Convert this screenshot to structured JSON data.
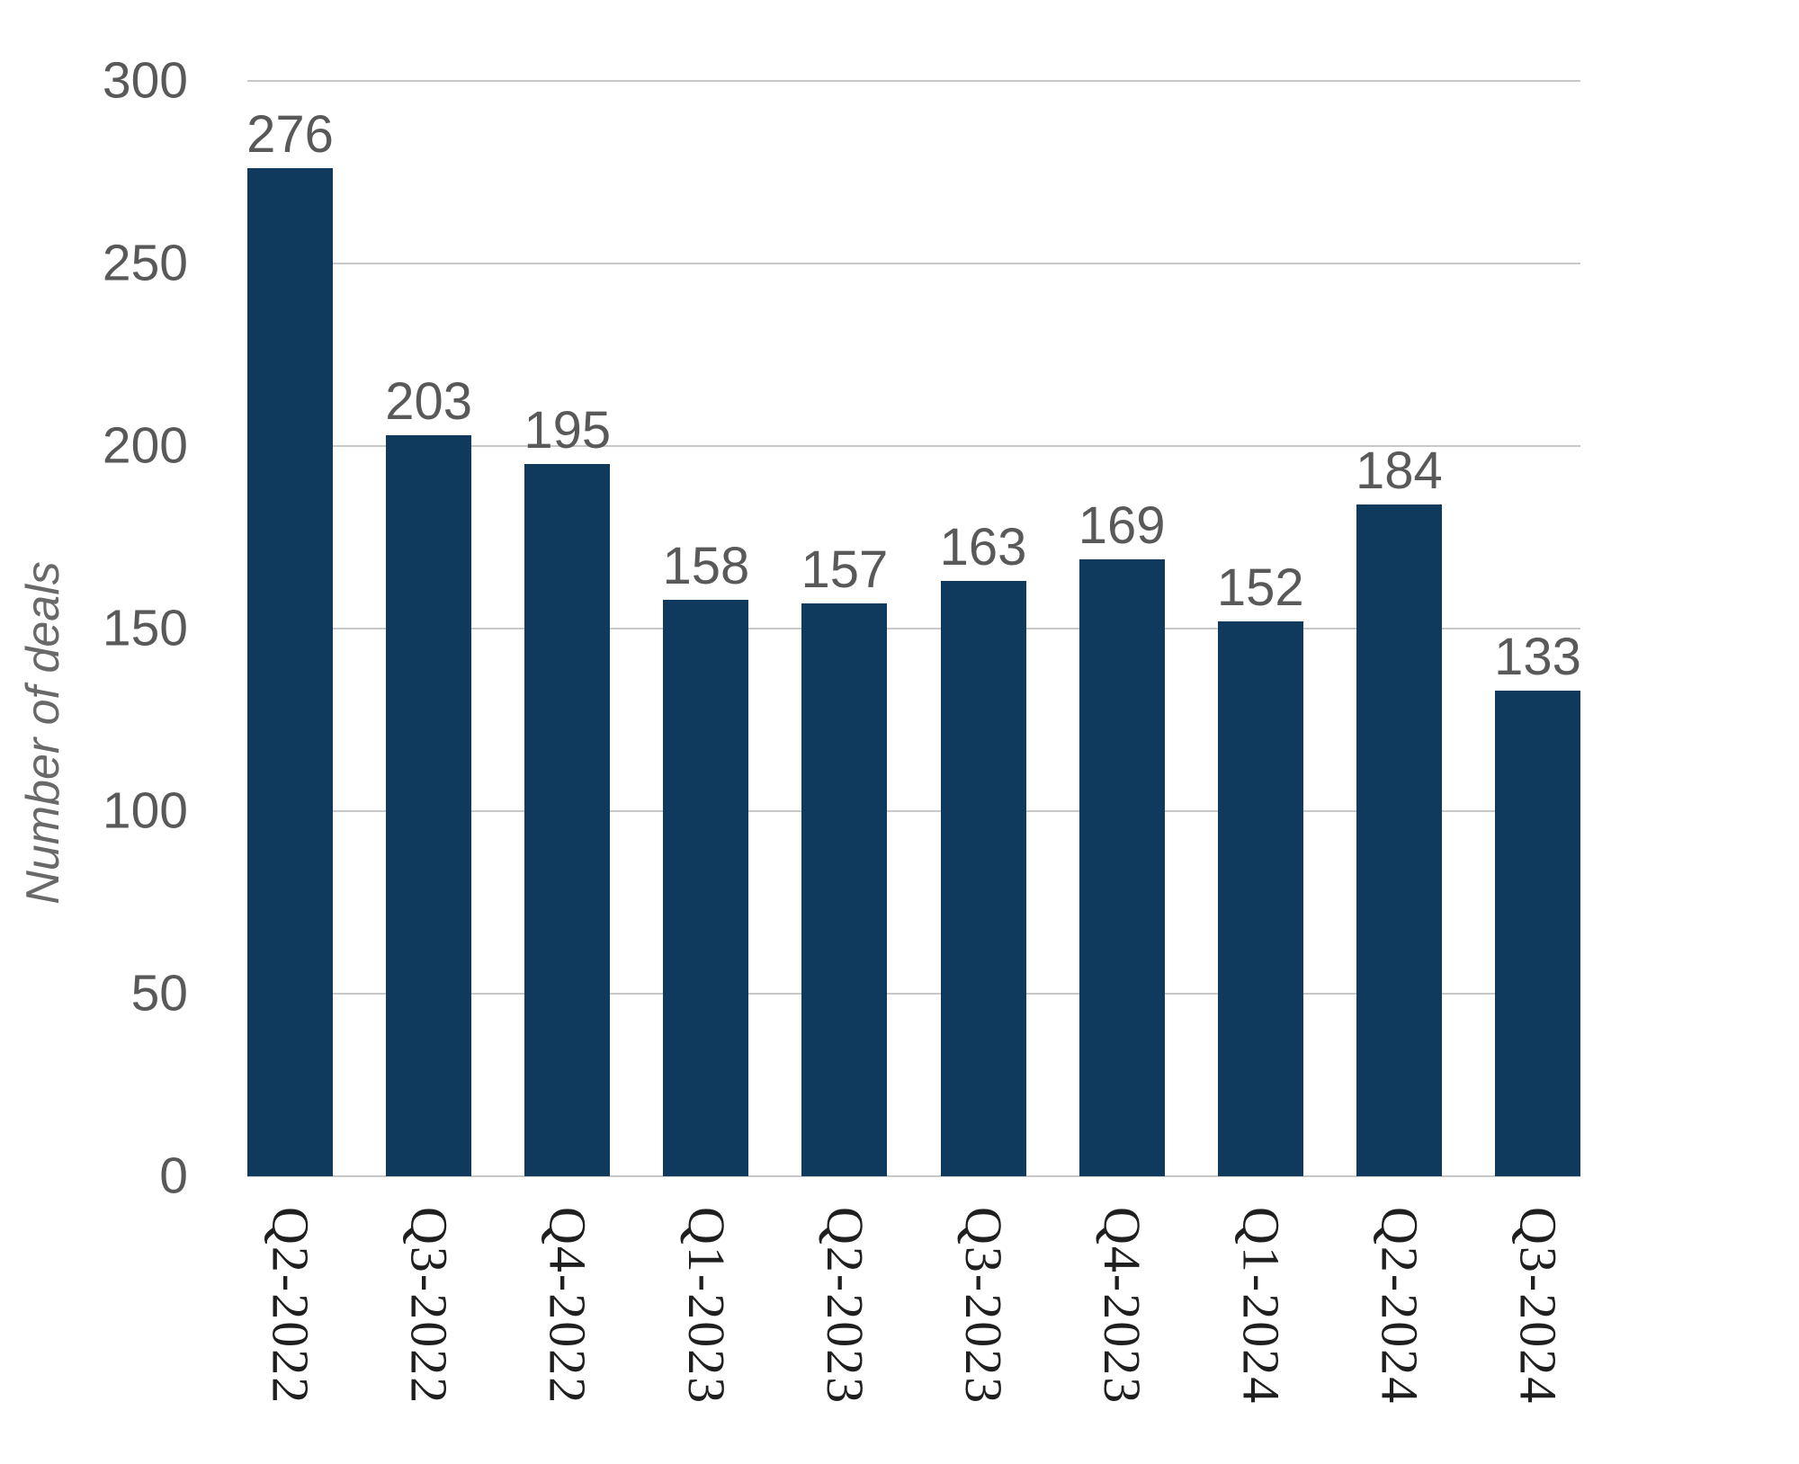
{
  "chart_data": {
    "type": "bar",
    "categories": [
      "Q2-2022",
      "Q3-2022",
      "Q4-2022",
      "Q1-2023",
      "Q2-2023",
      "Q3-2023",
      "Q4-2023",
      "Q1-2024",
      "Q2-2024",
      "Q3-2024"
    ],
    "values": [
      276,
      203,
      195,
      158,
      157,
      163,
      169,
      152,
      184,
      133
    ],
    "title": "",
    "xlabel": "",
    "ylabel": "Number of deals",
    "ylim": [
      0,
      300
    ],
    "yticks": [
      0,
      50,
      100,
      150,
      200,
      250,
      300
    ],
    "grid": true,
    "legend_position": "none",
    "data_labels": true,
    "colors": {
      "bar": "#0f3a5d",
      "gridline": "#c8c8c8",
      "tick_label": "#595959",
      "value_label": "#595959",
      "category_label": "#1f1f1f",
      "axis_title": "#696969"
    }
  }
}
